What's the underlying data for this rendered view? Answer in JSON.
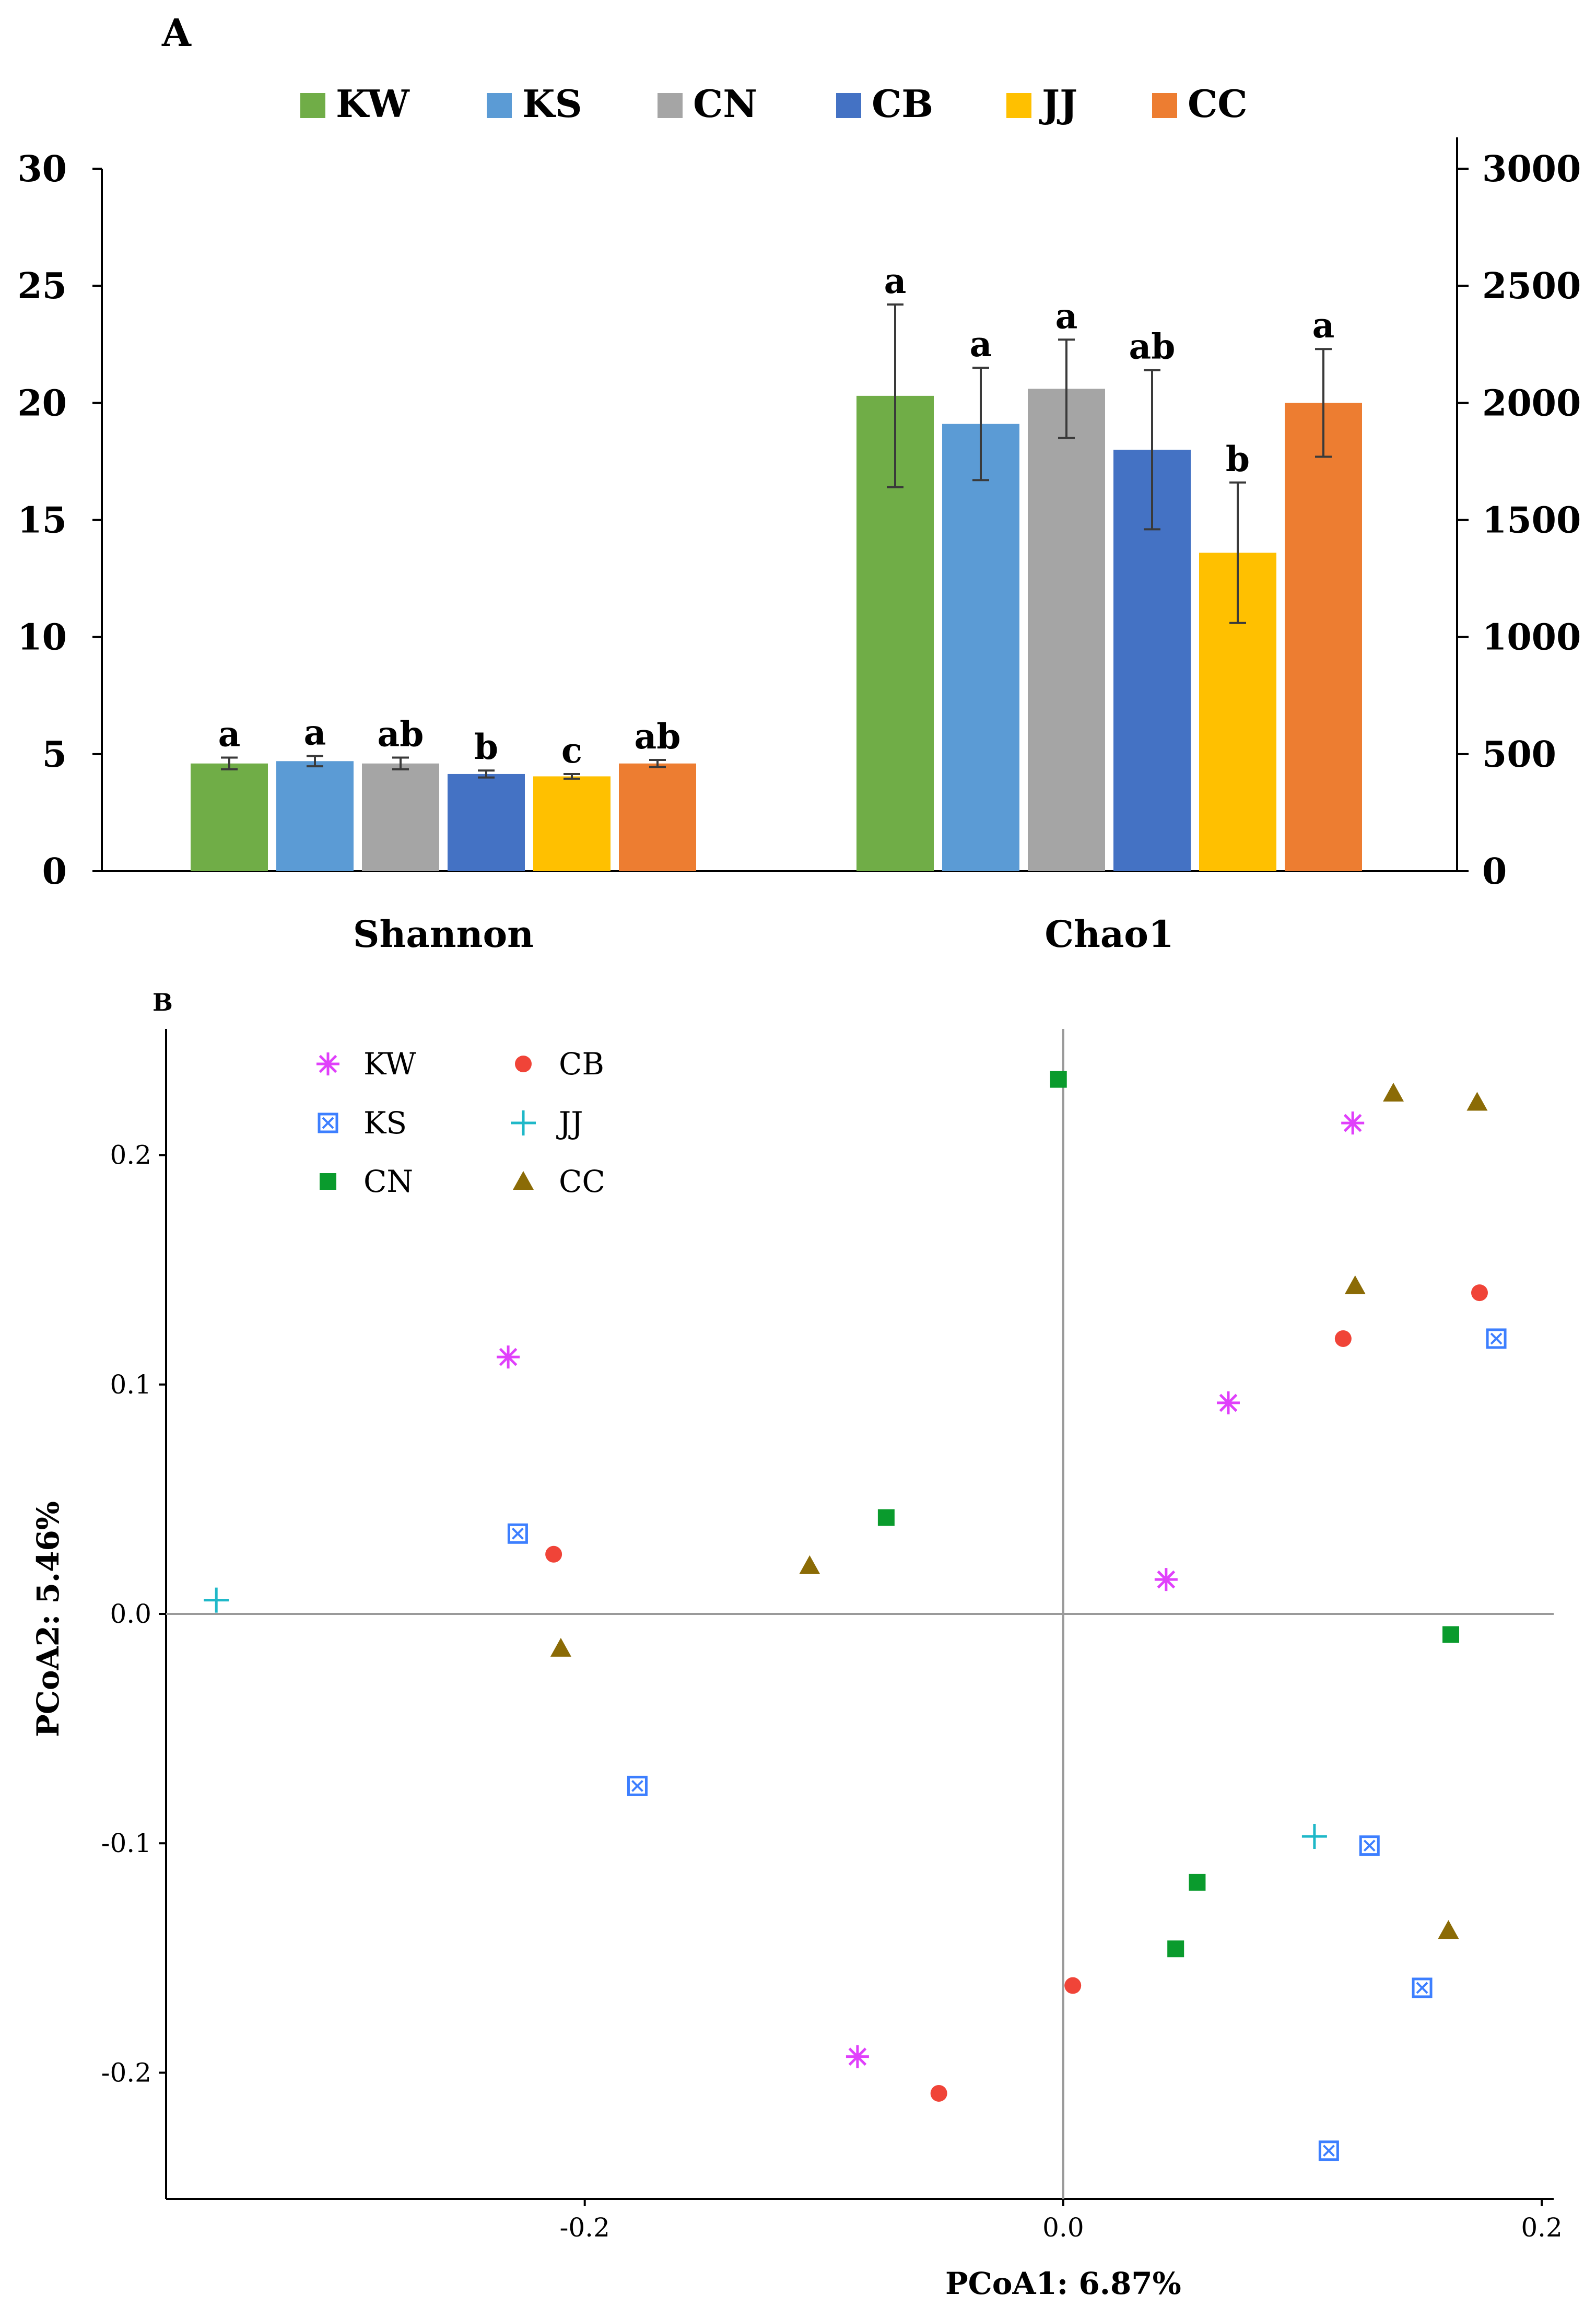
{
  "chart_data": [
    {
      "panel": "A",
      "type": "bar",
      "categories": [
        "Shannon",
        "Chao1"
      ],
      "axes": {
        "left": {
          "min": 0,
          "max": 30,
          "ticks": [
            "0",
            "5",
            "10",
            "15",
            "20",
            "25",
            "30"
          ],
          "applies_to": "Shannon"
        },
        "right": {
          "min": 0,
          "max": 3000,
          "ticks": [
            "0",
            "500",
            "1000",
            "1500",
            "2000",
            "2500",
            "3000"
          ],
          "applies_to": "Chao1"
        }
      },
      "legend_position": "top",
      "series": [
        {
          "name": "KW",
          "color": "#70AD47",
          "values": [
            4.6,
            2030
          ],
          "errors": [
            0.25,
            390
          ],
          "letters": [
            "a",
            "a"
          ]
        },
        {
          "name": "KS",
          "color": "#5B9BD5",
          "values": [
            4.7,
            1910
          ],
          "errors": [
            0.22,
            240
          ],
          "letters": [
            "a",
            "a"
          ]
        },
        {
          "name": "CN",
          "color": "#A5A5A5",
          "values": [
            4.6,
            2060
          ],
          "errors": [
            0.25,
            210
          ],
          "letters": [
            "ab",
            "a"
          ]
        },
        {
          "name": "CB",
          "color": "#4472C4",
          "values": [
            4.15,
            1800
          ],
          "errors": [
            0.15,
            340
          ],
          "letters": [
            "b",
            "ab"
          ]
        },
        {
          "name": "JJ",
          "color": "#FFC000",
          "values": [
            4.05,
            1360
          ],
          "errors": [
            0.1,
            300
          ],
          "letters": [
            "c",
            "b"
          ]
        },
        {
          "name": "CC",
          "color": "#ED7D31",
          "values": [
            4.6,
            2000
          ],
          "errors": [
            0.15,
            230
          ],
          "letters": [
            "ab",
            "a"
          ]
        }
      ]
    },
    {
      "panel": "B",
      "type": "scatter",
      "xlabel": "PCoA1: 6.87%",
      "ylabel": "PCoA2: 5.46%",
      "xlim": [
        -0.375,
        0.205
      ],
      "ylim": [
        -0.255,
        0.255
      ],
      "xticks": [
        "-0.2",
        "0.0",
        "0.2"
      ],
      "xtick_values": [
        -0.2,
        0.0,
        0.2
      ],
      "yticks": [
        "-0.2",
        "-0.1",
        "0.0",
        "0.1",
        "0.2"
      ],
      "ytick_values": [
        -0.2,
        -0.1,
        0.0,
        0.1,
        0.2
      ],
      "zero_lines": true,
      "legend_position": "top-left",
      "series": [
        {
          "name": "KW",
          "color": "#E040FB",
          "marker": "asterisk",
          "points": [
            [
              -0.232,
              0.112
            ],
            [
              0.069,
              0.092
            ],
            [
              0.043,
              0.015
            ],
            [
              0.121,
              0.214
            ],
            [
              -0.086,
              -0.193
            ]
          ]
        },
        {
          "name": "KS",
          "color": "#3D7FFF",
          "marker": "box-x",
          "points": [
            [
              -0.228,
              0.035
            ],
            [
              -0.178,
              -0.075
            ],
            [
              0.181,
              0.12
            ],
            [
              0.128,
              -0.101
            ],
            [
              0.15,
              -0.163
            ],
            [
              0.111,
              -0.234
            ]
          ]
        },
        {
          "name": "CN",
          "color": "#0A9B2D",
          "marker": "square",
          "points": [
            [
              -0.002,
              0.233
            ],
            [
              -0.074,
              0.042
            ],
            [
              0.162,
              -0.009
            ],
            [
              0.056,
              -0.117
            ],
            [
              0.047,
              -0.146
            ]
          ]
        },
        {
          "name": "CB",
          "color": "#F04438",
          "marker": "circle",
          "points": [
            [
              -0.213,
              0.026
            ],
            [
              0.117,
              0.12
            ],
            [
              0.174,
              0.14
            ],
            [
              0.004,
              -0.162
            ],
            [
              -0.052,
              -0.209
            ]
          ]
        },
        {
          "name": "JJ",
          "color": "#1FB8C8",
          "marker": "plus",
          "points": [
            [
              -0.354,
              0.006
            ],
            [
              0.105,
              -0.097
            ]
          ]
        },
        {
          "name": "CC",
          "color": "#8B6B06",
          "marker": "triangle",
          "points": [
            [
              -0.106,
              0.021
            ],
            [
              -0.21,
              -0.015
            ],
            [
              0.122,
              0.143
            ],
            [
              0.138,
              0.227
            ],
            [
              0.173,
              0.223
            ],
            [
              0.161,
              -0.138
            ]
          ]
        }
      ]
    }
  ]
}
